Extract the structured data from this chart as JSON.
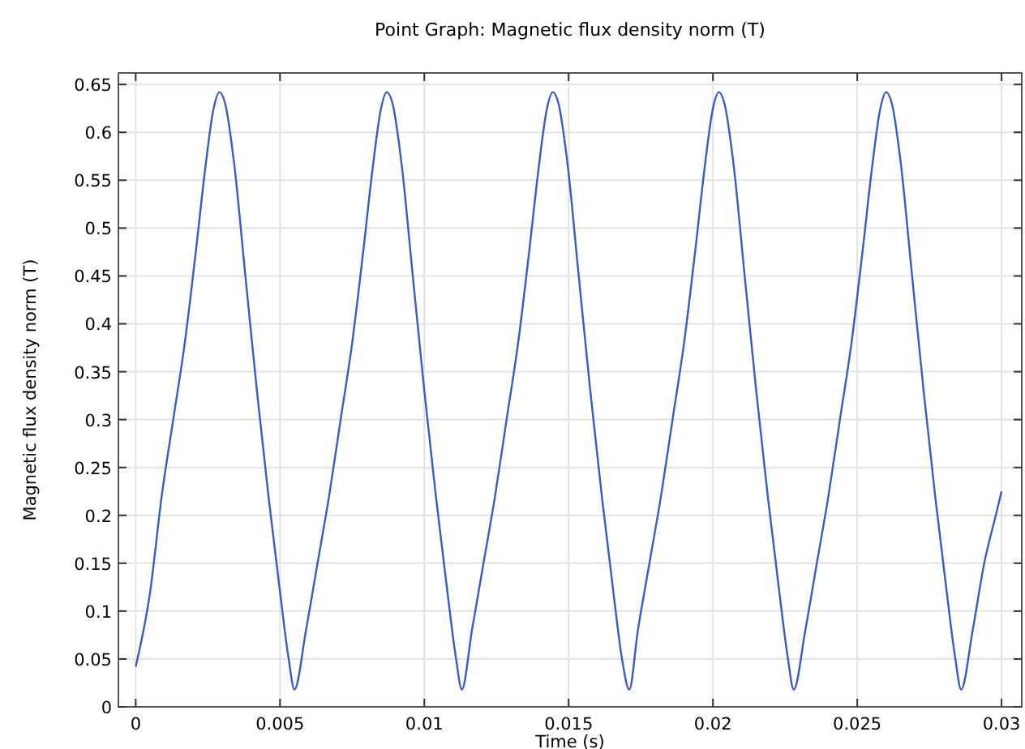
{
  "chart_data": {
    "type": "line",
    "title": "Point Graph: Magnetic flux density norm (T)",
    "xlabel": "Time (s)",
    "ylabel": "Magnetic flux density norm (T)",
    "x": [
      0,
      0.0005,
      0.0009,
      0.0013,
      0.0017,
      0.0021,
      0.0024,
      0.0027,
      0.0029,
      0.0031,
      0.0034,
      0.0038,
      0.0042,
      0.0046,
      0.005,
      0.0053,
      0.0055,
      0.0059,
      0.0063,
      0.0067,
      0.0071,
      0.0075,
      0.0079,
      0.0082,
      0.0085,
      0.0087,
      0.0089,
      0.0092,
      0.0096,
      0.01,
      0.0104,
      0.0108,
      0.0111,
      0.0113,
      0.01165,
      0.01205,
      0.01245,
      0.01285,
      0.01325,
      0.01365,
      0.01395,
      0.01425,
      0.01445,
      0.01465,
      0.01495,
      0.01535,
      0.01575,
      0.01615,
      0.01655,
      0.01685,
      0.0171,
      0.0174,
      0.0178,
      0.0182,
      0.0186,
      0.019,
      0.0194,
      0.0197,
      0.02,
      0.0202,
      0.0204,
      0.0207,
      0.0211,
      0.0215,
      0.0219,
      0.0223,
      0.0226,
      0.0228,
      0.0232,
      0.0236,
      0.024,
      0.0244,
      0.0248,
      0.0252,
      0.0255,
      0.0258,
      0.026,
      0.0262,
      0.0265,
      0.0269,
      0.0273,
      0.0277,
      0.0281,
      0.0284,
      0.0286,
      0.029,
      0.0294,
      0.0298,
      0.03
    ],
    "series": [
      {
        "color": "#3a5bc7",
        "values": [
          0.042,
          0.12,
          0.22,
          0.3,
          0.38,
          0.48,
          0.56,
          0.625,
          0.642,
          0.63,
          0.57,
          0.45,
          0.33,
          0.22,
          0.12,
          0.05,
          0.018,
          0.08,
          0.15,
          0.22,
          0.3,
          0.38,
          0.48,
          0.56,
          0.625,
          0.642,
          0.63,
          0.57,
          0.45,
          0.33,
          0.22,
          0.12,
          0.05,
          0.018,
          0.08,
          0.15,
          0.22,
          0.3,
          0.38,
          0.48,
          0.56,
          0.625,
          0.642,
          0.63,
          0.57,
          0.45,
          0.33,
          0.22,
          0.12,
          0.05,
          0.018,
          0.08,
          0.15,
          0.22,
          0.3,
          0.38,
          0.48,
          0.56,
          0.625,
          0.642,
          0.63,
          0.57,
          0.45,
          0.33,
          0.22,
          0.12,
          0.05,
          0.018,
          0.08,
          0.15,
          0.22,
          0.3,
          0.38,
          0.48,
          0.56,
          0.625,
          0.642,
          0.63,
          0.57,
          0.45,
          0.33,
          0.22,
          0.12,
          0.05,
          0.018,
          0.08,
          0.15,
          0.2,
          0.225
        ]
      }
    ],
    "xlim": [
      -0.0006,
      0.0307
    ],
    "xticks": [
      0,
      0.005,
      0.01,
      0.015,
      0.02,
      0.025,
      0.03
    ],
    "ylim": [
      0,
      0.662
    ],
    "yticks": [
      0,
      0.05,
      0.1,
      0.15,
      0.2,
      0.25,
      0.3,
      0.35,
      0.4,
      0.45,
      0.5,
      0.55,
      0.6,
      0.65
    ],
    "grid": true,
    "marker": "none",
    "line_style": "solid"
  }
}
